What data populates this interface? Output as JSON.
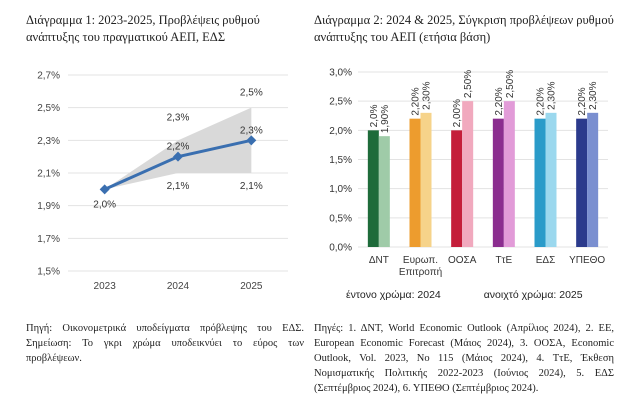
{
  "chart_data": [
    {
      "type": "line",
      "title_prefix": "Διάγραμμα 1",
      "title": "Διάγραμμα 1: 2023-2025, Προβλέψεις ρυθμού ανάπτυξης του πραγματικού ΑΕΠ, ΕΔΣ",
      "categories": [
        "2023",
        "2024",
        "2025"
      ],
      "series": [
        {
          "values": [
            2.0,
            2.2,
            2.3
          ],
          "labels": [
            "2,0%",
            "2,2%",
            "2,3%"
          ],
          "color": "#3A6FB0"
        }
      ],
      "range_band": {
        "upper": [
          2.0,
          2.3,
          2.5
        ],
        "lower": [
          2.0,
          2.1,
          2.1
        ],
        "upper_labels": [
          "",
          "2,3%",
          "2,5%"
        ],
        "lower_labels": [
          "",
          "2,1%",
          "2,1%"
        ],
        "color": "#D9D9D9"
      },
      "yticks": [
        1.5,
        1.7,
        1.9,
        2.1,
        2.3,
        2.5,
        2.7
      ],
      "ytick_labels": [
        "1,5%",
        "1,7%",
        "1,9%",
        "2,1%",
        "2,3%",
        "2,5%",
        "2,7%"
      ],
      "ylim": [
        1.5,
        2.7
      ],
      "grid": true
    },
    {
      "type": "bar",
      "title_prefix": "Διάγραμμα 2",
      "title": "Διάγραμμα 2: 2024 & 2025, Σύγκριση προβλέψεων ρυθμού ανάπτυξης του ΑΕΠ (ετήσια βάση)",
      "categories": [
        "ΔΝΤ",
        "Ευρωπ. Επιτροπή",
        "ΟΟΣΑ",
        "ΤτΕ",
        "ΕΔΣ",
        "ΥΠΕΘΟ"
      ],
      "category_lines": [
        [
          "ΔΝΤ"
        ],
        [
          "Ευρωπ.",
          "Επιτροπή"
        ],
        [
          "ΟΟΣΑ"
        ],
        [
          "ΤτΕ"
        ],
        [
          "ΕΔΣ"
        ],
        [
          "ΥΠΕΘΟ"
        ]
      ],
      "series": [
        {
          "year": "2024",
          "values": [
            2.0,
            2.2,
            2.0,
            2.2,
            2.2,
            2.2
          ],
          "labels": [
            "2,0%",
            "2,20%",
            "2,00%",
            "2,20%",
            "2,20%",
            "2,20%"
          ]
        },
        {
          "year": "2025",
          "values": [
            1.9,
            2.3,
            2.5,
            2.5,
            2.3,
            2.3
          ],
          "labels": [
            "1,90%",
            "2,30%",
            "2,50%",
            "2,50%",
            "2,30%",
            "2,30%"
          ]
        }
      ],
      "colors_2024": [
        "#1E6B3A",
        "#ED9C2E",
        "#C41E3A",
        "#8B2D8F",
        "#2A9BC9",
        "#2B3A8C"
      ],
      "colors_2025": [
        "#9FCBA8",
        "#F6D38A",
        "#F1A9BE",
        "#E29BD8",
        "#9BD8EE",
        "#7A8FD0"
      ],
      "yticks": [
        0.0,
        0.5,
        1.0,
        1.5,
        2.0,
        2.5,
        3.0
      ],
      "ytick_labels": [
        "0,0%",
        "0,5%",
        "1,0%",
        "1,5%",
        "2,0%",
        "2,5%",
        "3,0%"
      ],
      "ylim": [
        0,
        3.0
      ],
      "grid": true
    }
  ],
  "legend": {
    "dark": "έντονο χρώμα: 2024",
    "light": "ανοιχτό χρώμα: 2025"
  },
  "notes": {
    "left": "Πηγή: Οικονομετρικά υποδείγματα πρόβλεψης του ΕΔΣ. Σημείωση: Το γκρι χρώμα υποδεικνύει το εύρος των προβλέψεων.",
    "right": "Πηγές: 1. ΔΝΤ, World Economic Outlook (Απρίλιος 2024), 2. ΕΕ, European Economic Forecast (Μάιος 2024), 3. ΟΟΣΑ, Economic Outlook, Vol. 2023, No 115 (Μάιος 2024), 4. ΤτΕ, Έκθεση Νομισματικής Πολιτικής 2022-2023 (Ιούνιος 2024), 5. ΕΔΣ (Σεπτέμβριος 2024), 6. ΥΠΕΘΟ (Σεπτέμβριος 2024)."
  }
}
